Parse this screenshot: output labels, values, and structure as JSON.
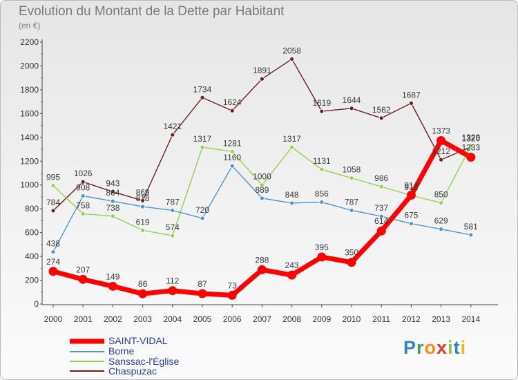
{
  "chart_data": {
    "type": "line",
    "title": "Evolution du Montant de la Dette par Habitant",
    "subtitle": "(en €)",
    "x": [
      "2000",
      "2001",
      "2002",
      "2003",
      "2004",
      "2005",
      "2006",
      "2007",
      "2008",
      "2009",
      "2010",
      "2011",
      "2012",
      "2013",
      "2014"
    ],
    "yticks": [
      "0",
      "200",
      "400",
      "600",
      "800",
      "1000",
      "1200",
      "1400",
      "1600",
      "1800",
      "2000",
      "2200"
    ],
    "ylim": [
      0,
      2200
    ],
    "grid": false,
    "legend_position": "bottom-left",
    "series": [
      {
        "name": "Chaspuzac",
        "color": "#6b1f1f",
        "values": [
          784,
          1026,
          943,
          869,
          1421,
          1734,
          1624,
          1891,
          2058,
          1619,
          1644,
          1562,
          1687,
          1212,
          1320
        ]
      },
      {
        "name": "Sanssac-l'Église",
        "color": "#92d050",
        "values": [
          995,
          758,
          738,
          619,
          574,
          1317,
          1281,
          1000,
          1317,
          1131,
          1058,
          986,
          912,
          850,
          1328
        ]
      },
      {
        "name": "Borne",
        "color": "#4f94cd",
        "values": [
          438,
          908,
          864,
          818,
          787,
          720,
          1160,
          889,
          848,
          856,
          787,
          737,
          675,
          629,
          581
        ]
      },
      {
        "name": "SAINT-VIDAL",
        "color": "#ff0000",
        "values": [
          274,
          207,
          149,
          86,
          112,
          87,
          73,
          288,
          243,
          395,
          350,
          614,
          914,
          1373,
          1233
        ]
      }
    ]
  },
  "logo": {
    "text": "Proxiti",
    "letters": [
      "P",
      "r",
      "o",
      "x",
      "i",
      "t",
      "i"
    ]
  }
}
